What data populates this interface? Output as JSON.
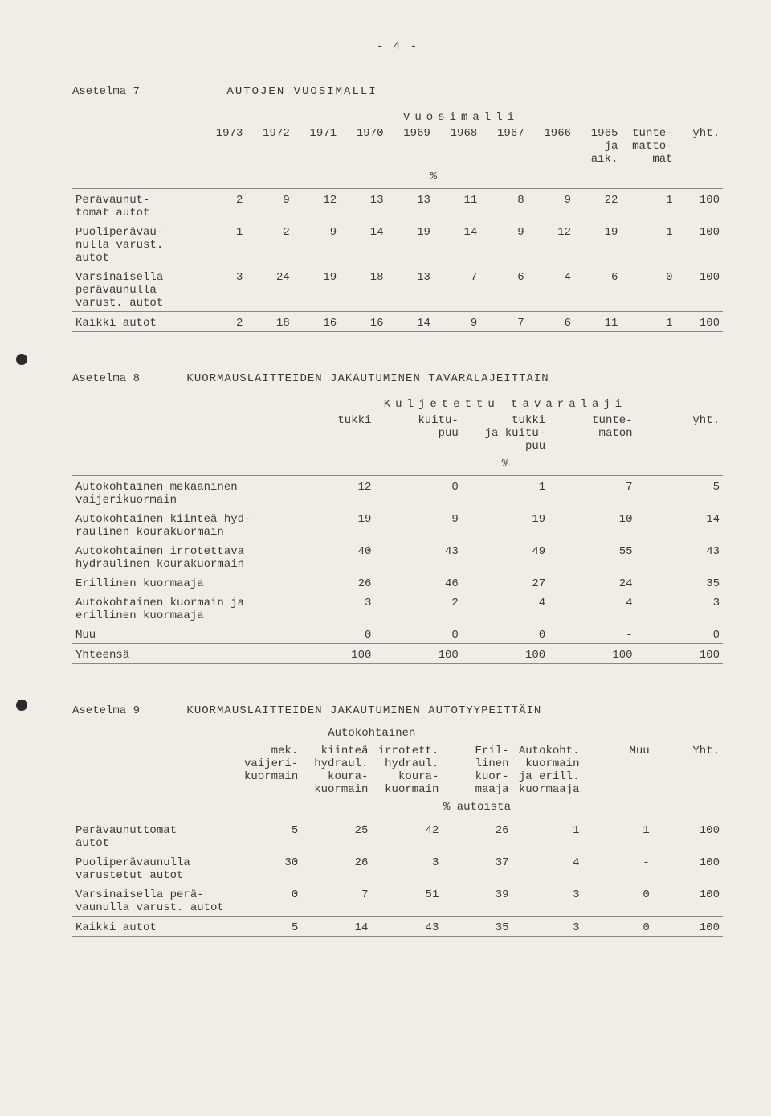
{
  "page_number": "- 4 -",
  "colors": {
    "background": "#f0ede6",
    "text": "#3a3a3a",
    "rule": "#888888"
  },
  "table7": {
    "label": "Asetelma 7",
    "title": "AUTOJEN  VUOSIMALLI",
    "group_header": "Vuosimalli",
    "columns": [
      "1973",
      "1972",
      "1971",
      "1970",
      "1969",
      "1968",
      "1967",
      "1966",
      "1965\nja\naik.",
      "tunte-\nmatto-\nmat",
      "yht."
    ],
    "pct_label": "%",
    "rows": [
      {
        "label": "Perävaunut-\ntomat autot",
        "values": [
          "2",
          "9",
          "12",
          "13",
          "13",
          "11",
          "8",
          "9",
          "22",
          "1",
          "100"
        ]
      },
      {
        "label": "Puoliperävau-\nnulla varust.\nautot",
        "values": [
          "1",
          "2",
          "9",
          "14",
          "19",
          "14",
          "9",
          "12",
          "19",
          "1",
          "100"
        ]
      },
      {
        "label": "Varsinaisella\nperävaunulla\nvarust. autot",
        "values": [
          "3",
          "24",
          "19",
          "18",
          "13",
          "7",
          "6",
          "4",
          "6",
          "0",
          "100"
        ]
      },
      {
        "label": "Kaikki autot",
        "values": [
          "2",
          "18",
          "16",
          "16",
          "14",
          "9",
          "7",
          "6",
          "11",
          "1",
          "100"
        ]
      }
    ]
  },
  "table8": {
    "label": "Asetelma 8",
    "title": "KUORMAUSLAITTEIDEN JAKAUTUMINEN TAVARALAJEITTAIN",
    "group_header": "Kuljetettu tavaralaji",
    "columns": [
      "tukki",
      "kuitu-\npuu",
      "tukki\nja kuitu-\npuu",
      "tunte-\nmaton",
      "yht."
    ],
    "pct_label": "%",
    "rows": [
      {
        "label": "Autokohtainen mekaaninen\nvaijerikuormain",
        "values": [
          "12",
          "0",
          "1",
          "7",
          "5"
        ]
      },
      {
        "label": "Autokohtainen kiinteä hyd-\nraulinen kourakuormain",
        "values": [
          "19",
          "9",
          "19",
          "10",
          "14"
        ]
      },
      {
        "label": "Autokohtainen irrotettava\nhydraulinen kourakuormain",
        "values": [
          "40",
          "43",
          "49",
          "55",
          "43"
        ]
      },
      {
        "label": "Erillinen kuormaaja",
        "values": [
          "26",
          "46",
          "27",
          "24",
          "35"
        ]
      },
      {
        "label": "Autokohtainen kuormain ja\nerillinen kuormaaja",
        "values": [
          "3",
          "2",
          "4",
          "4",
          "3"
        ]
      },
      {
        "label": "Muu",
        "values": [
          "0",
          "0",
          "0",
          "-",
          "0"
        ]
      },
      {
        "label": "Yhteensä",
        "values": [
          "100",
          "100",
          "100",
          "100",
          "100"
        ]
      }
    ]
  },
  "table9": {
    "label": "Asetelma 9",
    "title": "KUORMAUSLAITTEIDEN JAKAUTUMINEN AUTOTYYPEITTÄIN",
    "group_header": "Autokohtainen",
    "columns": [
      "mek.\nvaijeri-\nkuormain",
      "kiinteä\nhydraul.\nkoura-\nkuormain",
      "irrotett.\nhydraul.\nkoura-\nkuormain",
      "Eril-\nlinen\nkuor-\nmaaja",
      "Autokoht.\nkuormain\nja erill.\nkuormaaja",
      "Muu",
      "Yht."
    ],
    "pct_label": "% autoista",
    "rows": [
      {
        "label": "Perävaunuttomat\nautot",
        "values": [
          "5",
          "25",
          "42",
          "26",
          "1",
          "1",
          "100"
        ]
      },
      {
        "label": "Puoliperävaunulla\nvarustetut autot",
        "values": [
          "30",
          "26",
          "3",
          "37",
          "4",
          "-",
          "100"
        ]
      },
      {
        "label": "Varsinaisella perä-\nvaunulla varust. autot",
        "values": [
          "0",
          "7",
          "51",
          "39",
          "3",
          "0",
          "100"
        ]
      },
      {
        "label": "Kaikki autot",
        "values": [
          "5",
          "14",
          "43",
          "35",
          "3",
          "0",
          "100"
        ]
      }
    ]
  }
}
